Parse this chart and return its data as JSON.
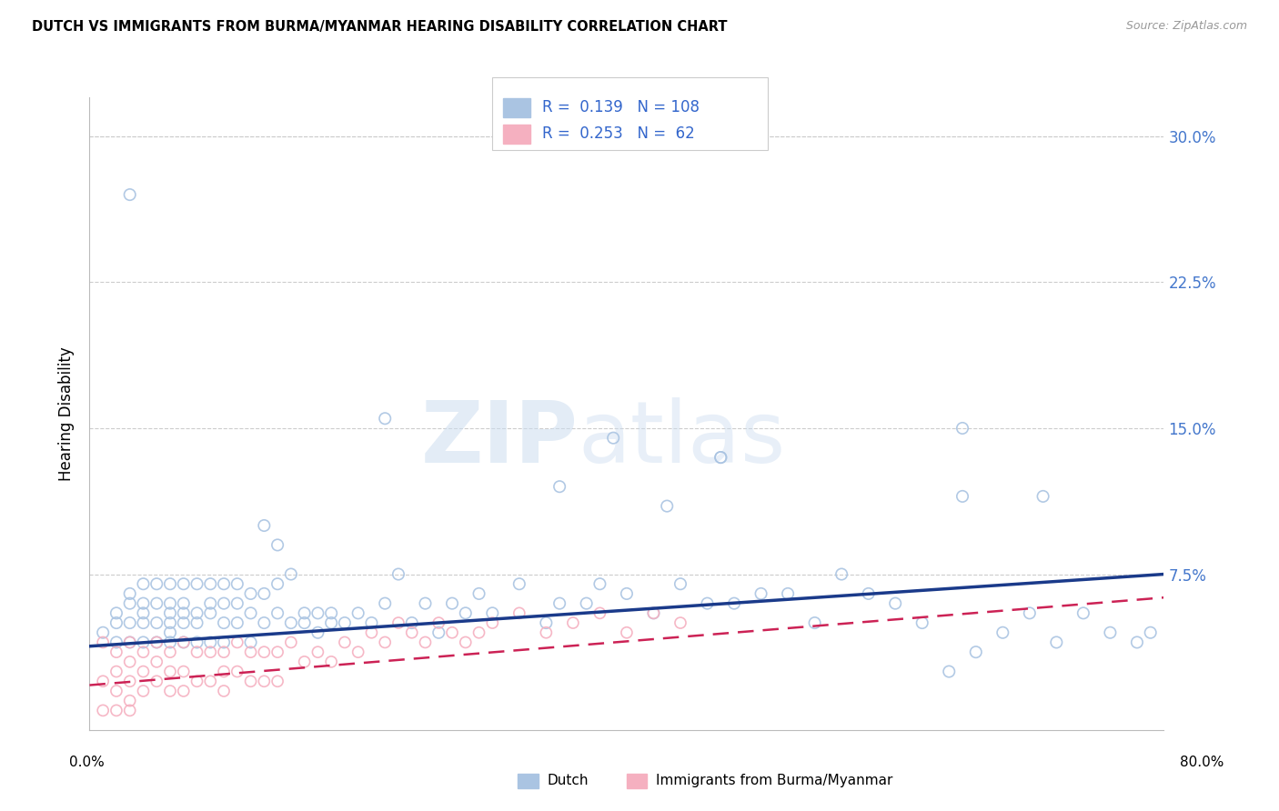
{
  "title": "DUTCH VS IMMIGRANTS FROM BURMA/MYANMAR HEARING DISABILITY CORRELATION CHART",
  "source": "Source: ZipAtlas.com",
  "ylabel": "Hearing Disability",
  "xlim": [
    0.0,
    0.8
  ],
  "ylim": [
    -0.005,
    0.32
  ],
  "dutch_color": "#aac4e2",
  "dutch_edge_color": "#7aa8d4",
  "dutch_line_color": "#1a3a8a",
  "myanmar_color": "#f5b0c0",
  "myanmar_edge_color": "#e87090",
  "myanmar_line_color": "#cc2255",
  "ytick_vals": [
    0.075,
    0.15,
    0.225,
    0.3
  ],
  "ytick_labels": [
    "7.5%",
    "15.0%",
    "22.5%",
    "30.0%"
  ],
  "ytick_color": "#4477cc",
  "legend_R_dutch": "0.139",
  "legend_N_dutch": "108",
  "legend_R_myanmar": "0.253",
  "legend_N_myanmar": "62",
  "legend_color": "#3366cc",
  "dutch_trend_x0": 0.0,
  "dutch_trend_y0": 0.038,
  "dutch_trend_x1": 0.8,
  "dutch_trend_y1": 0.075,
  "myanmar_trend_x0": 0.0,
  "myanmar_trend_y0": 0.018,
  "myanmar_trend_x1": 0.8,
  "myanmar_trend_y1": 0.063,
  "dutch_x": [
    0.01,
    0.02,
    0.02,
    0.02,
    0.03,
    0.03,
    0.03,
    0.03,
    0.04,
    0.04,
    0.04,
    0.04,
    0.04,
    0.05,
    0.05,
    0.05,
    0.05,
    0.06,
    0.06,
    0.06,
    0.06,
    0.06,
    0.06,
    0.07,
    0.07,
    0.07,
    0.07,
    0.07,
    0.08,
    0.08,
    0.08,
    0.08,
    0.09,
    0.09,
    0.09,
    0.09,
    0.1,
    0.1,
    0.1,
    0.1,
    0.11,
    0.11,
    0.11,
    0.12,
    0.12,
    0.12,
    0.13,
    0.13,
    0.13,
    0.14,
    0.14,
    0.14,
    0.15,
    0.15,
    0.16,
    0.16,
    0.17,
    0.17,
    0.18,
    0.18,
    0.19,
    0.2,
    0.21,
    0.22,
    0.23,
    0.24,
    0.25,
    0.26,
    0.27,
    0.28,
    0.29,
    0.3,
    0.32,
    0.34,
    0.35,
    0.37,
    0.38,
    0.4,
    0.42,
    0.44,
    0.46,
    0.47,
    0.48,
    0.5,
    0.52,
    0.54,
    0.56,
    0.58,
    0.6,
    0.62,
    0.64,
    0.65,
    0.66,
    0.68,
    0.7,
    0.72,
    0.74,
    0.76,
    0.78,
    0.79,
    0.35,
    0.22,
    0.39,
    0.47,
    0.65,
    0.71,
    0.43,
    0.03
  ],
  "dutch_y": [
    0.045,
    0.05,
    0.04,
    0.055,
    0.06,
    0.05,
    0.04,
    0.065,
    0.05,
    0.06,
    0.07,
    0.04,
    0.055,
    0.04,
    0.05,
    0.06,
    0.07,
    0.05,
    0.06,
    0.04,
    0.07,
    0.055,
    0.045,
    0.05,
    0.06,
    0.04,
    0.07,
    0.055,
    0.05,
    0.07,
    0.055,
    0.04,
    0.06,
    0.04,
    0.055,
    0.07,
    0.06,
    0.05,
    0.04,
    0.07,
    0.05,
    0.06,
    0.07,
    0.065,
    0.055,
    0.04,
    0.1,
    0.065,
    0.05,
    0.09,
    0.07,
    0.055,
    0.075,
    0.05,
    0.05,
    0.055,
    0.045,
    0.055,
    0.05,
    0.055,
    0.05,
    0.055,
    0.05,
    0.06,
    0.075,
    0.05,
    0.06,
    0.045,
    0.06,
    0.055,
    0.065,
    0.055,
    0.07,
    0.05,
    0.06,
    0.06,
    0.07,
    0.065,
    0.055,
    0.07,
    0.06,
    0.135,
    0.06,
    0.065,
    0.065,
    0.05,
    0.075,
    0.065,
    0.06,
    0.05,
    0.025,
    0.15,
    0.035,
    0.045,
    0.055,
    0.04,
    0.055,
    0.045,
    0.04,
    0.045,
    0.12,
    0.155,
    0.145,
    0.135,
    0.115,
    0.115,
    0.11,
    0.27
  ],
  "myanmar_x": [
    0.01,
    0.01,
    0.01,
    0.02,
    0.02,
    0.02,
    0.02,
    0.03,
    0.03,
    0.03,
    0.03,
    0.03,
    0.04,
    0.04,
    0.04,
    0.05,
    0.05,
    0.05,
    0.06,
    0.06,
    0.06,
    0.07,
    0.07,
    0.07,
    0.08,
    0.08,
    0.09,
    0.09,
    0.1,
    0.1,
    0.1,
    0.11,
    0.11,
    0.12,
    0.12,
    0.13,
    0.13,
    0.14,
    0.14,
    0.15,
    0.16,
    0.17,
    0.18,
    0.19,
    0.2,
    0.21,
    0.22,
    0.23,
    0.24,
    0.25,
    0.26,
    0.27,
    0.28,
    0.29,
    0.3,
    0.32,
    0.34,
    0.36,
    0.38,
    0.4,
    0.42,
    0.44
  ],
  "myanmar_y": [
    0.04,
    0.02,
    0.005,
    0.035,
    0.025,
    0.015,
    0.005,
    0.04,
    0.03,
    0.02,
    0.01,
    0.005,
    0.035,
    0.025,
    0.015,
    0.04,
    0.03,
    0.02,
    0.035,
    0.025,
    0.015,
    0.04,
    0.025,
    0.015,
    0.035,
    0.02,
    0.035,
    0.02,
    0.035,
    0.025,
    0.015,
    0.04,
    0.025,
    0.035,
    0.02,
    0.035,
    0.02,
    0.035,
    0.02,
    0.04,
    0.03,
    0.035,
    0.03,
    0.04,
    0.035,
    0.045,
    0.04,
    0.05,
    0.045,
    0.04,
    0.05,
    0.045,
    0.04,
    0.045,
    0.05,
    0.055,
    0.045,
    0.05,
    0.055,
    0.045,
    0.055,
    0.05
  ]
}
